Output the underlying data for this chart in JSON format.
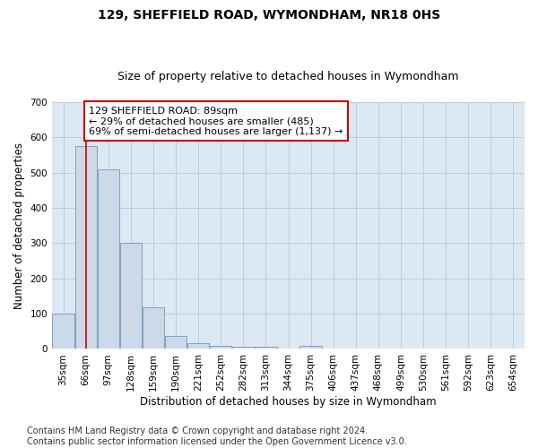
{
  "title": "129, SHEFFIELD ROAD, WYMONDHAM, NR18 0HS",
  "subtitle": "Size of property relative to detached houses in Wymondham",
  "xlabel": "Distribution of detached houses by size in Wymondham",
  "ylabel": "Number of detached properties",
  "bar_color": "#ccd9e8",
  "bar_edge_color": "#7099bb",
  "grid_color": "#b8c8da",
  "background_color": "#dce8f2",
  "footnote": "Contains HM Land Registry data © Crown copyright and database right 2024.\nContains public sector information licensed under the Open Government Licence v3.0.",
  "bin_labels": [
    "35sqm",
    "66sqm",
    "97sqm",
    "128sqm",
    "159sqm",
    "190sqm",
    "221sqm",
    "252sqm",
    "282sqm",
    "313sqm",
    "344sqm",
    "375sqm",
    "406sqm",
    "437sqm",
    "468sqm",
    "499sqm",
    "530sqm",
    "561sqm",
    "592sqm",
    "623sqm",
    "654sqm"
  ],
  "bar_heights": [
    100,
    575,
    510,
    300,
    118,
    37,
    17,
    8,
    5,
    5,
    0,
    8,
    0,
    0,
    0,
    0,
    0,
    0,
    0,
    0,
    0
  ],
  "property_bin_index": 1,
  "annotation_line1": "129 SHEFFIELD ROAD: 89sqm",
  "annotation_line2": "← 29% of detached houses are smaller (485)",
  "annotation_line3": "69% of semi-detached houses are larger (1,137) →",
  "annotation_box_color": "#ffffff",
  "annotation_box_edge_color": "#cc0000",
  "red_line_color": "#cc0000",
  "ylim": [
    0,
    700
  ],
  "yticks": [
    0,
    100,
    200,
    300,
    400,
    500,
    600,
    700
  ],
  "title_fontsize": 10,
  "subtitle_fontsize": 9,
  "axis_label_fontsize": 8.5,
  "tick_fontsize": 7.5,
  "annotation_fontsize": 8,
  "footnote_fontsize": 7
}
